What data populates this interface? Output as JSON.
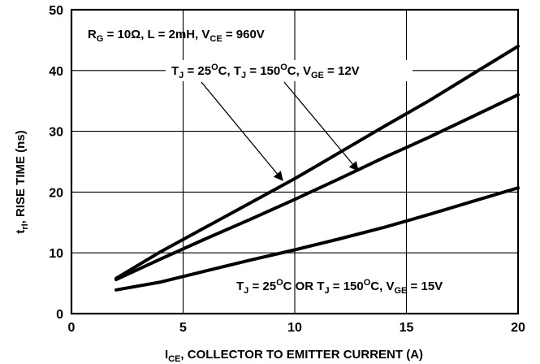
{
  "chart_data": {
    "type": "line",
    "xlabel": {
      "main": "I",
      "sub": "CE",
      "rest": ", COLLECTOR TO EMITTER CURRENT (A)"
    },
    "ylabel": {
      "main": "t",
      "sub": "rI",
      "rest": ",  RISE TIME  (ns)"
    },
    "xlim": [
      0,
      20
    ],
    "ylim": [
      0,
      50
    ],
    "xticks": [
      0,
      5,
      10,
      15,
      20
    ],
    "yticks": [
      0,
      10,
      20,
      30,
      40,
      50
    ],
    "grid": true,
    "series": [
      {
        "x": [
          2,
          4,
          6,
          8,
          10,
          12,
          14,
          16,
          18,
          20
        ],
        "y": [
          5.8,
          10.2,
          14.2,
          18.2,
          22.2,
          26.5,
          30.8,
          35.0,
          39.5,
          44.0
        ]
      },
      {
        "x": [
          2,
          4,
          6,
          8,
          10,
          12,
          14,
          16,
          18,
          20
        ],
        "y": [
          5.6,
          9.0,
          12.3,
          15.5,
          18.8,
          22.2,
          25.7,
          29.0,
          32.5,
          36.0
        ]
      },
      {
        "x": [
          2,
          4,
          6,
          8,
          10,
          12,
          14,
          16,
          18,
          20
        ],
        "y": [
          3.9,
          5.2,
          7.0,
          8.8,
          10.5,
          12.3,
          14.2,
          16.3,
          18.5,
          20.7
        ]
      }
    ],
    "annotations": [
      {
        "parts": [
          [
            "R",
            "G",
            " = 10Ω, L = 2mH, V"
          ],
          [
            "",
            "CE",
            " = 960V"
          ]
        ]
      },
      {
        "parts": [
          [
            "T",
            "J",
            " = 25"
          ],
          [
            "",
            "O",
            "C, T"
          ],
          [
            "",
            "J",
            " = 150"
          ],
          [
            "",
            "O",
            "C, V"
          ],
          [
            "",
            "GE",
            " = 12V"
          ]
        ]
      },
      {
        "parts": [
          [
            "T",
            "J",
            " = 25"
          ],
          [
            "",
            "O",
            "C OR T"
          ],
          [
            "",
            "J",
            " = 150"
          ],
          [
            "",
            "O",
            "C, V"
          ],
          [
            "",
            "GE",
            " = 15V"
          ]
        ]
      }
    ]
  }
}
